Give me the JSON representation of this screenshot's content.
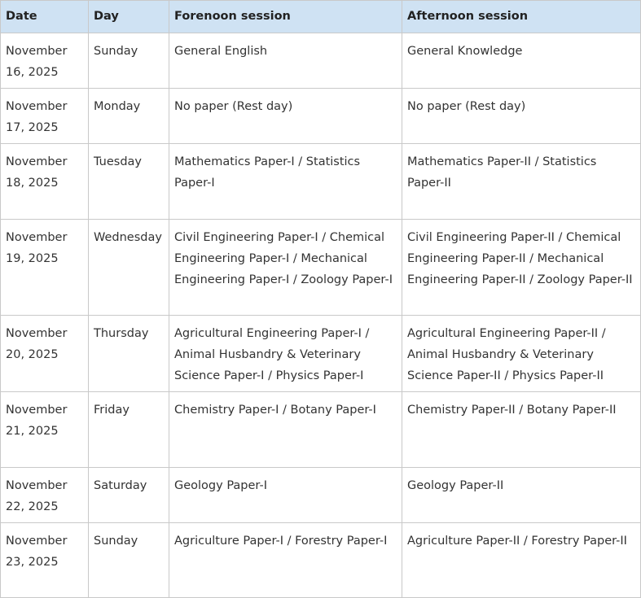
{
  "table": {
    "header": [
      "Date",
      "Day",
      "Forenoon session",
      "Afternoon session"
    ],
    "rows": [
      [
        "November 16, 2025",
        "Sunday",
        "General English",
        "General Knowledge"
      ],
      [
        "November 17, 2025",
        "Monday",
        "No paper (Rest day)",
        "No paper (Rest day)"
      ],
      [
        "November 18, 2025",
        "Tuesday",
        "Mathematics Paper-I / Statistics Paper-I",
        "Mathematics Paper-II / Statistics Paper-II"
      ],
      [
        "November 19, 2025",
        "Wednesday",
        "Civil Engineering Paper-I / Chemical Engineering Paper-I / Mechanical Engineering Paper-I / Zoology Paper-I",
        "Civil Engineering Paper-II / Chemical Engineering Paper-II / Mechanical Engineering Paper-II / Zoology Paper-II"
      ],
      [
        "November 20, 2025",
        "Thursday",
        "Agricultural Engineering Paper-I / Animal Husbandry & Veterinary Science Paper-I / Physics Paper-I",
        "Agricultural Engineering Paper-II / Animal Husbandry & Veterinary Science Paper-II / Physics Paper-II"
      ],
      [
        "November 21, 2025",
        "Friday",
        "Chemistry Paper-I / Botany Paper-I",
        "Chemistry Paper-II / Botany Paper-II"
      ],
      [
        "November 22, 2025",
        "Saturday",
        "Geology Paper-I",
        "Geology Paper-II"
      ],
      [
        "November 23, 2025",
        "Sunday",
        "Agriculture Paper-I / Forestry Paper-I",
        "Agriculture Paper-II / Forestry Paper-II"
      ]
    ]
  }
}
